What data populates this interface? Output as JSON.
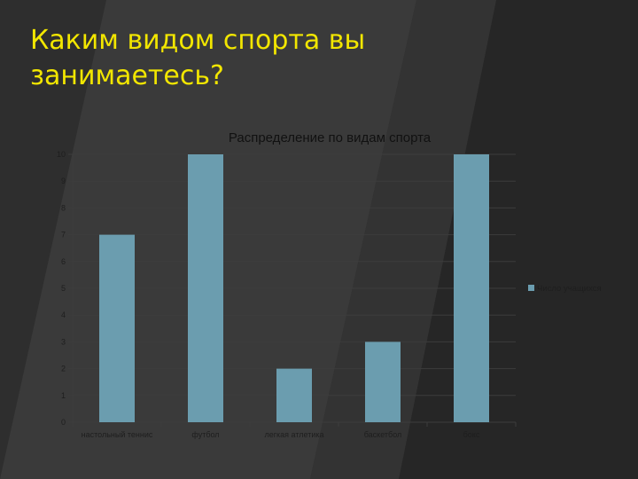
{
  "slide": {
    "title_line1": "Каким видом спорта вы",
    "title_line2": "занимаетесь?"
  },
  "colors": {
    "background": "#2e2e2e",
    "title": "#f2e600",
    "bar": "#6b9daf",
    "grid": "#3c3c3c"
  },
  "chart_data": {
    "type": "bar",
    "title": "Распределение по видам спорта",
    "categories": [
      "настольный теннис",
      "футбол",
      "легкая атлетика",
      "баскетбол",
      "бокс"
    ],
    "series": [
      {
        "name": "Число учащихся",
        "values": [
          7,
          10,
          2,
          3,
          10
        ]
      }
    ],
    "ylim": [
      0,
      10
    ],
    "yticks": [
      "0",
      "1",
      "2",
      "3",
      "4",
      "5",
      "6",
      "7",
      "8",
      "9",
      "10"
    ],
    "grid": true,
    "legend_position": "right"
  }
}
